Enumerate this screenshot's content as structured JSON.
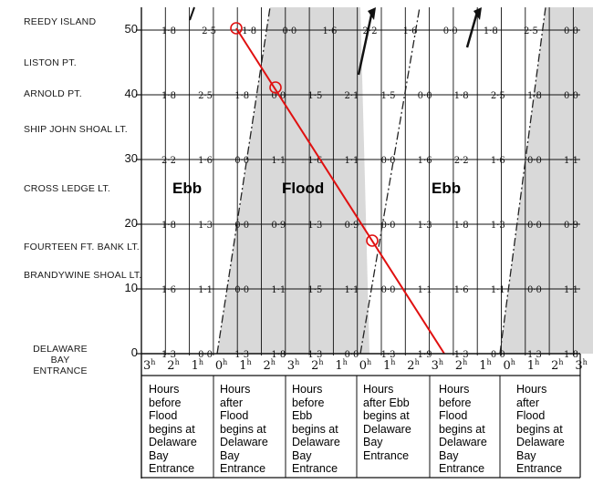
{
  "stations": [
    {
      "name": "REEDY ISLAND"
    },
    {
      "name": "LISTON PT."
    },
    {
      "name": "ARNOLD PT."
    },
    {
      "name": "SHIP JOHN SHOAL LT."
    },
    {
      "name": "CROSS LEDGE LT."
    },
    {
      "name": "FOURTEEN FT. BANK LT."
    },
    {
      "name": "BRANDYWINE SHOAL LT."
    },
    {
      "name": "DELAWARE BAY\nENTRANCE"
    }
  ],
  "y_axis": {
    "ticks": [
      "50",
      "40",
      "30",
      "20",
      "10",
      "0"
    ]
  },
  "phase_labels": [
    "Ebb",
    "Flood",
    "Ebb"
  ],
  "hour_labels": [
    "3h",
    "2h",
    "1h",
    "0h",
    "1h",
    "2h",
    "3h",
    "2h",
    "1h",
    "0h",
    "1h",
    "2h",
    "3h",
    "2h",
    "1h",
    "0h",
    "1h",
    "2h",
    "3h"
  ],
  "legend": [
    "Hours\nbefore\nFlood\nbegins at\nDelaware\nBay\nEntrance",
    "Hours\nafter\nFlood\nbegins at\nDelaware\nBay\nEntrance",
    "Hours\nbefore\nEbb\nbegins at\nDelaware\nBay\nEntrance",
    "Hours\nafter Ebb\nbegins at\nDelaware\nBay\nEntrance",
    "Hours\nbefore\nFlood\nbegins at\nDelaware\nBay\nEntrance",
    "Hours\nafter\nFlood\nbegins at\nDelaware\nBay\nEntrance"
  ],
  "speed_rows": [
    {
      "y": 50,
      "values": [
        "1·8",
        "2·5",
        "1·8",
        "0·0",
        "1·6",
        "2·2",
        "1·6",
        "0·0",
        "1·8",
        "2·5",
        "0·0"
      ]
    },
    {
      "y": 40,
      "values": [
        "1·8",
        "2·5",
        "1·8",
        "0·0",
        "1·5",
        "2·1",
        "1·5",
        "0·0",
        "1·8",
        "2·5",
        "1·8",
        "0·0"
      ]
    },
    {
      "y": 30,
      "values": [
        "2·2",
        "1·6",
        "0·0",
        "1·1",
        "1·6",
        "1·1",
        "0·0",
        "1·6",
        "2·2",
        "1·6",
        "0·0",
        "1·1"
      ]
    },
    {
      "y": 20,
      "values": [
        "1·8",
        "1·3",
        "0·0",
        "0·9",
        "1·3",
        "0·9",
        "0·0",
        "1·3",
        "1·8",
        "1·3",
        "0·0",
        "0·9"
      ]
    },
    {
      "y": 10,
      "values": [
        "1·6",
        "1·1",
        "0·0",
        "1·1",
        "1·5",
        "1·1",
        "0·0",
        "1·1",
        "1·6",
        "1·1",
        "0·0",
        "1·1"
      ]
    },
    {
      "y": 0,
      "values": [
        "1·3",
        "0·0",
        "1·3",
        "1·8",
        "1·3",
        "0·0",
        "1·3",
        "1·9",
        "1·3",
        "0·0",
        "1·3",
        "1·8"
      ]
    }
  ],
  "colors": {
    "ink": "#111111",
    "shade": "#d9d9d9",
    "route": "#e01010"
  }
}
